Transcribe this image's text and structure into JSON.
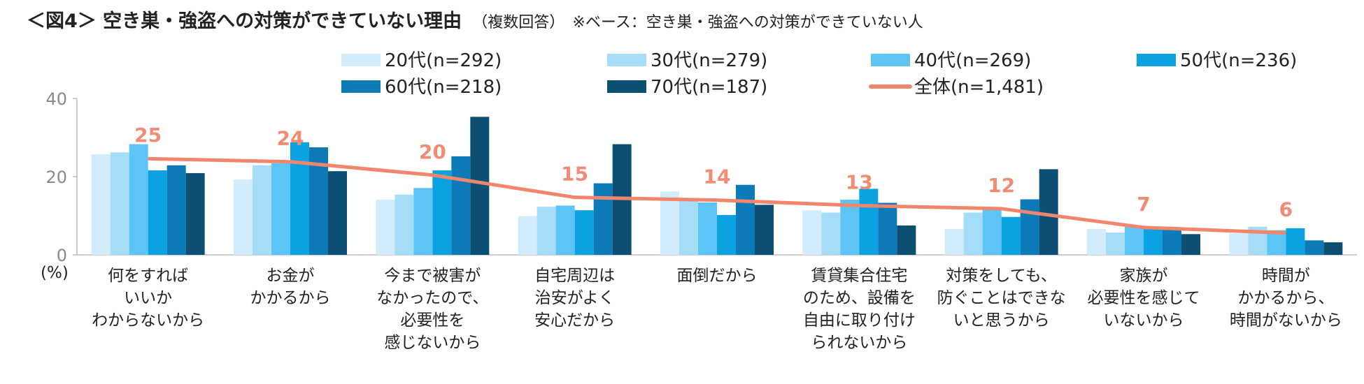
{
  "title": {
    "main": "＜図4＞ 空き巣・強盗への対策ができていない理由",
    "sub": "（複数回答）",
    "base": "※ベース：空き巣・強盗への対策ができていない人"
  },
  "chart_data": {
    "type": "bar",
    "ylim": [
      0,
      40
    ],
    "yticks": [
      0,
      20,
      40
    ],
    "ylabel": "(%)",
    "categories": [
      [
        "何をすれば",
        "いいか",
        "わからないから"
      ],
      [
        "お金が",
        "かかるから"
      ],
      [
        "今まで被害が",
        "なかったので、",
        "必要性を",
        "感じないから"
      ],
      [
        "自宅周辺は",
        "治安がよく",
        "安心だから"
      ],
      [
        "面倒だから"
      ],
      [
        "賃貸集合住宅",
        "のため、設備を",
        "自由に取り付け",
        "られないから"
      ],
      [
        "対策をしても、",
        "防ぐことはできな",
        "いと思うから"
      ],
      [
        "家族が",
        "必要性を感じて",
        "いないから"
      ],
      [
        "時間が",
        "かかるから、",
        "時間がないから"
      ]
    ],
    "series": [
      {
        "name": "20代(n=292)",
        "color": "#d2ecfb",
        "values": [
          25.7,
          19.3,
          14.1,
          9.9,
          16.2,
          11.4,
          6.6,
          6.6,
          5.5
        ]
      },
      {
        "name": "30代(n=279)",
        "color": "#a5dcf7",
        "values": [
          26.2,
          22.9,
          15.4,
          12.3,
          14.1,
          10.8,
          10.8,
          5.7,
          7.2
        ]
      },
      {
        "name": "40代(n=269)",
        "color": "#5cc5f5",
        "values": [
          28.3,
          23.4,
          17.1,
          12.6,
          13.4,
          14.1,
          11.5,
          7.4,
          6.3
        ]
      },
      {
        "name": "50代(n=236)",
        "color": "#0ca2e2",
        "values": [
          21.6,
          28.8,
          21.6,
          11.4,
          10.2,
          16.9,
          9.7,
          7.2,
          6.8
        ]
      },
      {
        "name": "60代(n=218)",
        "color": "#0d7ab8",
        "values": [
          22.9,
          27.5,
          25.2,
          18.3,
          17.9,
          13.3,
          14.2,
          6.4,
          3.7
        ]
      },
      {
        "name": "70代(n=187)",
        "color": "#0c4f73",
        "values": [
          20.9,
          21.4,
          35.3,
          28.3,
          12.8,
          7.5,
          21.9,
          5.3,
          3.2
        ]
      }
    ],
    "line": {
      "name": "全体(n=1,481)",
      "color": "#f2866d",
      "values": [
        24.6,
        23.8,
        20.4,
        14.7,
        14.0,
        12.6,
        11.8,
        7.0,
        5.6
      ],
      "labels": [
        "25",
        "24",
        "20",
        "15",
        "14",
        "13",
        "12",
        "7",
        "6"
      ]
    }
  }
}
